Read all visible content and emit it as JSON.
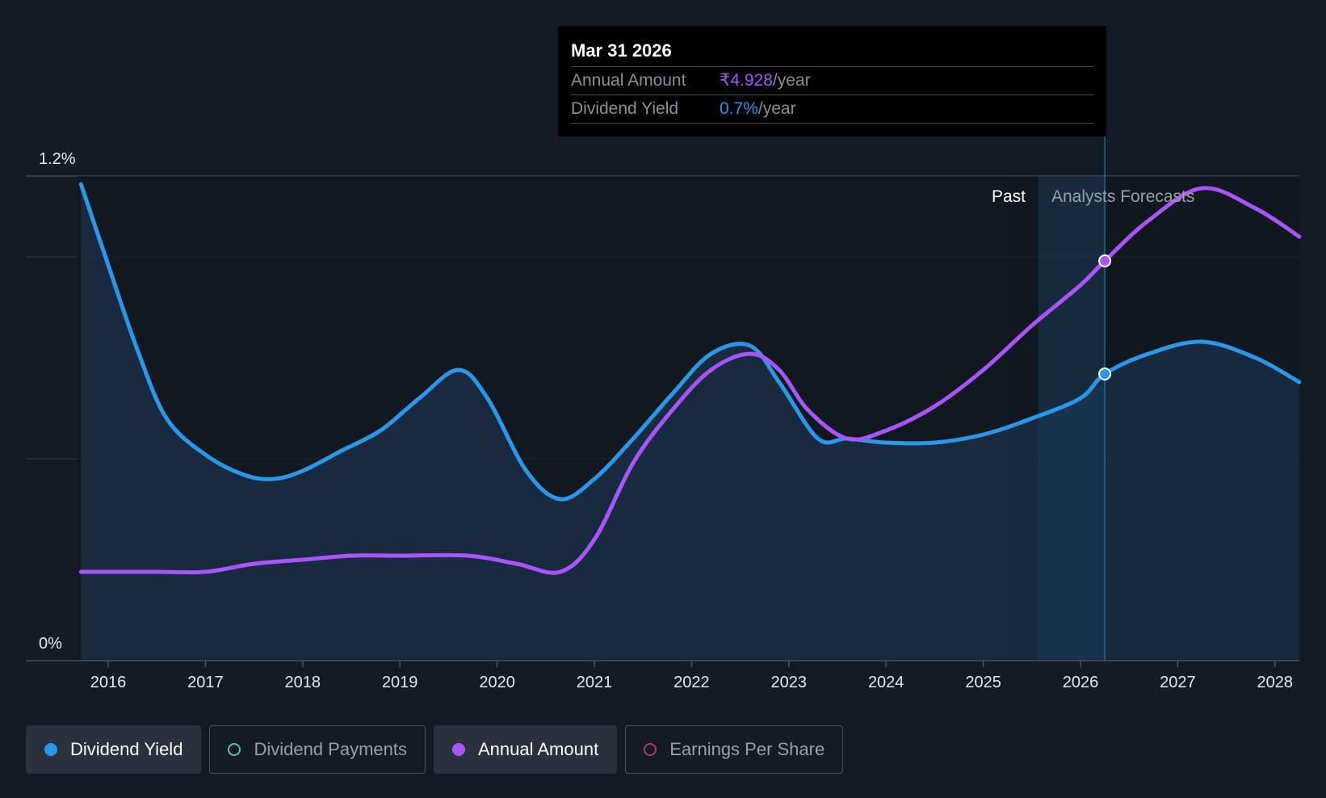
{
  "tooltip": {
    "date": "Mar 31 2026",
    "annual_label": "Annual Amount",
    "annual_value": "₹4.928",
    "annual_unit": "/year",
    "yield_label": "Dividend Yield",
    "yield_value": "0.7%",
    "yield_unit": "/year"
  },
  "regions": {
    "past": "Past",
    "forecast": "Analysts Forecasts"
  },
  "legend": [
    {
      "label": "Dividend Yield",
      "active": true,
      "color": "#2b97e8",
      "marker": "filled"
    },
    {
      "label": "Dividend Payments",
      "active": false,
      "color": "#4fc3b8",
      "marker": "ring"
    },
    {
      "label": "Annual Amount",
      "active": true,
      "color": "#a855f7",
      "marker": "filled"
    },
    {
      "label": "Earnings Per Share",
      "active": false,
      "color": "#b03a6e",
      "marker": "ring"
    }
  ],
  "chart_data": {
    "type": "line",
    "title": "",
    "xlabel": "",
    "ylabel": "",
    "x_ticks": [
      "2016",
      "2017",
      "2018",
      "2019",
      "2020",
      "2021",
      "2022",
      "2023",
      "2024",
      "2025",
      "2026",
      "2027",
      "2028"
    ],
    "y_ticks": [
      "0%",
      "1.2%"
    ],
    "ylim": [
      0,
      1.2
    ],
    "xlim": [
      2015.7,
      2028.25
    ],
    "highlight_x": 2026.25,
    "forecast_start_x": 2025.25,
    "series": [
      {
        "name": "Dividend Yield",
        "color": "#2b97e8",
        "area": true,
        "points": [
          [
            2015.72,
            1.18
          ],
          [
            2016.0,
            0.98
          ],
          [
            2016.3,
            0.77
          ],
          [
            2016.6,
            0.6
          ],
          [
            2017.0,
            0.51
          ],
          [
            2017.4,
            0.46
          ],
          [
            2017.7,
            0.45
          ],
          [
            2018.0,
            0.47
          ],
          [
            2018.4,
            0.52
          ],
          [
            2018.8,
            0.57
          ],
          [
            2019.2,
            0.65
          ],
          [
            2019.6,
            0.72
          ],
          [
            2019.9,
            0.65
          ],
          [
            2020.3,
            0.47
          ],
          [
            2020.65,
            0.4
          ],
          [
            2021.0,
            0.45
          ],
          [
            2021.4,
            0.55
          ],
          [
            2021.8,
            0.66
          ],
          [
            2022.2,
            0.76
          ],
          [
            2022.6,
            0.78
          ],
          [
            2022.9,
            0.69
          ],
          [
            2023.3,
            0.55
          ],
          [
            2023.6,
            0.55
          ],
          [
            2024.0,
            0.54
          ],
          [
            2024.5,
            0.54
          ],
          [
            2025.0,
            0.56
          ],
          [
            2025.5,
            0.6
          ],
          [
            2026.0,
            0.65
          ],
          [
            2026.25,
            0.71
          ],
          [
            2026.7,
            0.76
          ],
          [
            2027.25,
            0.79
          ],
          [
            2027.8,
            0.75
          ],
          [
            2028.25,
            0.69
          ]
        ]
      },
      {
        "name": "Annual Amount",
        "color": "#a855f7",
        "area": false,
        "points": [
          [
            2015.72,
            0.22
          ],
          [
            2016.5,
            0.22
          ],
          [
            2017.0,
            0.22
          ],
          [
            2017.5,
            0.24
          ],
          [
            2018.0,
            0.25
          ],
          [
            2018.5,
            0.26
          ],
          [
            2019.0,
            0.26
          ],
          [
            2019.7,
            0.26
          ],
          [
            2020.2,
            0.24
          ],
          [
            2020.65,
            0.22
          ],
          [
            2021.0,
            0.3
          ],
          [
            2021.4,
            0.49
          ],
          [
            2021.8,
            0.62
          ],
          [
            2022.2,
            0.72
          ],
          [
            2022.6,
            0.76
          ],
          [
            2022.9,
            0.72
          ],
          [
            2023.2,
            0.62
          ],
          [
            2023.6,
            0.55
          ],
          [
            2024.0,
            0.57
          ],
          [
            2024.5,
            0.63
          ],
          [
            2025.0,
            0.72
          ],
          [
            2025.5,
            0.83
          ],
          [
            2026.0,
            0.93
          ],
          [
            2026.25,
            0.99
          ],
          [
            2026.7,
            1.09
          ],
          [
            2027.25,
            1.17
          ],
          [
            2027.8,
            1.12
          ],
          [
            2028.25,
            1.05
          ]
        ]
      }
    ]
  }
}
